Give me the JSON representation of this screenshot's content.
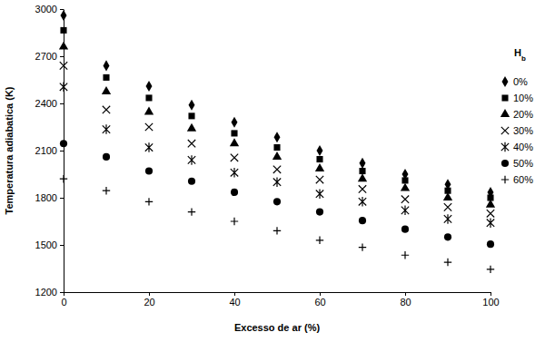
{
  "chart_data": {
    "type": "scatter",
    "x_label": "Excesso de ar (%)",
    "y_label": "Temperatura adiabatica  (K)",
    "legend_title": "Hb",
    "legend": "right",
    "grid": false,
    "x": [
      0,
      10,
      20,
      30,
      40,
      50,
      60,
      70,
      80,
      90,
      100
    ],
    "xlim": [
      0,
      100
    ],
    "xticks": [
      0,
      20,
      40,
      60,
      80,
      100
    ],
    "ylim": [
      1200,
      3000
    ],
    "yticks": [
      1200,
      1500,
      1800,
      2100,
      2400,
      2700,
      3000
    ],
    "series": [
      {
        "name": "0%",
        "color": "#000000",
        "marker": "diamond",
        "values": [
          2960,
          2640,
          2510,
          2390,
          2280,
          2185,
          2100,
          2020,
          1950,
          1885,
          1835
        ]
      },
      {
        "name": "10%",
        "color": "#000000",
        "marker": "square",
        "values": [
          2865,
          2565,
          2435,
          2320,
          2210,
          2120,
          2045,
          1970,
          1910,
          1845,
          1800
        ]
      },
      {
        "name": "20%",
        "color": "#000000",
        "marker": "triangle",
        "values": [
          2760,
          2475,
          2345,
          2240,
          2145,
          2060,
          1985,
          1920,
          1860,
          1800,
          1755
        ]
      },
      {
        "name": "30%",
        "color": "#000000",
        "marker": "x",
        "values": [
          2640,
          2360,
          2250,
          2145,
          2055,
          1980,
          1915,
          1855,
          1790,
          1740,
          1700
        ]
      },
      {
        "name": "40%",
        "color": "#000000",
        "marker": "asterisk",
        "values": [
          2505,
          2235,
          2120,
          2040,
          1960,
          1900,
          1825,
          1775,
          1720,
          1665,
          1640
        ]
      },
      {
        "name": "50%",
        "color": "#000000",
        "marker": "circle",
        "values": [
          2145,
          2060,
          1970,
          1905,
          1835,
          1775,
          1710,
          1655,
          1600,
          1550,
          1505
        ]
      },
      {
        "name": "60%",
        "color": "#000000",
        "marker": "plus",
        "values": [
          1920,
          1845,
          1775,
          1710,
          1650,
          1590,
          1530,
          1485,
          1435,
          1390,
          1345
        ]
      }
    ]
  }
}
